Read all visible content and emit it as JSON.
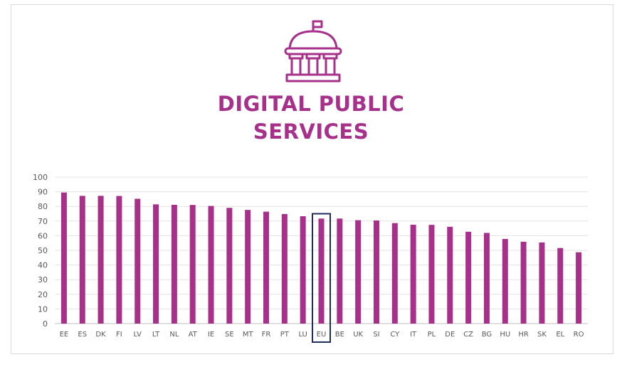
{
  "colors": {
    "bar": "#A7308A",
    "title": "#A7308A",
    "highlight": "#1F2D5A",
    "grid": "#e3e3e3",
    "axis_text": "#595959"
  },
  "header": {
    "icon": "government-building-icon",
    "title_line1": "DIGITAL PUBLIC",
    "title_line2": "SERVICES"
  },
  "chart_data": {
    "type": "bar",
    "categories": [
      "EE",
      "ES",
      "DK",
      "FI",
      "LV",
      "LT",
      "NL",
      "AT",
      "IE",
      "SE",
      "MT",
      "FR",
      "PT",
      "LU",
      "EU",
      "BE",
      "UK",
      "SI",
      "CY",
      "IT",
      "PL",
      "DE",
      "CZ",
      "BG",
      "HU",
      "HR",
      "SK",
      "EL",
      "RO"
    ],
    "values": [
      89.5,
      87.2,
      87.2,
      87.1,
      85.2,
      81.4,
      81.1,
      81.0,
      80.3,
      79.0,
      77.6,
      76.4,
      74.8,
      73.3,
      71.7,
      71.7,
      70.6,
      70.4,
      68.6,
      67.5,
      67.4,
      66.1,
      62.7,
      61.9,
      57.8,
      55.9,
      55.4,
      51.6,
      48.7
    ],
    "highlight_category": "EU",
    "ylim": [
      0,
      100
    ],
    "yticks": [
      0,
      10,
      20,
      30,
      40,
      50,
      60,
      70,
      80,
      90,
      100
    ],
    "grid": true,
    "title": "",
    "xlabel": "",
    "ylabel": ""
  }
}
